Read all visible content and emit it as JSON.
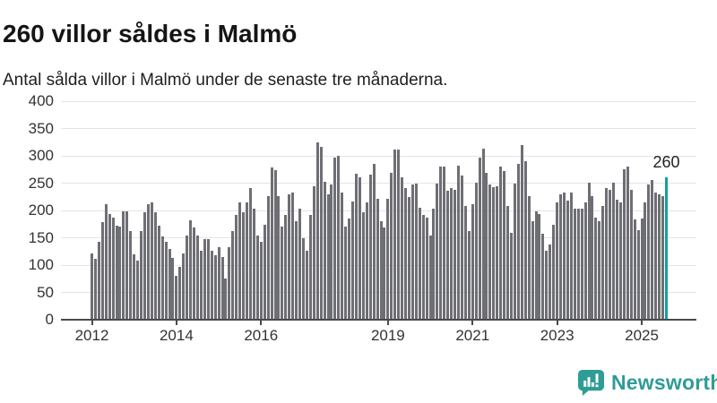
{
  "title": "260 villor såldes i Malmö",
  "subtitle": "Antal sålda villor i Malmö under de senaste tre månaderna.",
  "annotation": {
    "label": "260"
  },
  "brand": {
    "name": "Newsworthy",
    "icon": "newsworthy-speech-bubble-bar-chart-icon",
    "color": "#2f9c96"
  },
  "colors": {
    "bar": "#6e6e75",
    "highlight": "#12a0a2",
    "gridline": "#e4e4e4",
    "axis": "#4a4a4a",
    "title_text": "#151515",
    "tick_text": "#333333"
  },
  "chart_data": {
    "type": "bar",
    "title": "260 villor såldes i Malmö",
    "subtitle": "Antal sålda villor i Malmö under de senaste tre månaderna.",
    "xlabel": "",
    "ylabel": "",
    "frequency": "monthly",
    "x_start": "2012-01",
    "x_end": "2025-08",
    "ylim": [
      0,
      400
    ],
    "y_ticks": [
      0,
      50,
      100,
      150,
      200,
      250,
      300,
      350,
      400
    ],
    "x_ticks": [
      {
        "label": "2012",
        "month_index": 0
      },
      {
        "label": "2014",
        "month_index": 24
      },
      {
        "label": "2016",
        "month_index": 48
      },
      {
        "label": "2019",
        "month_index": 84
      },
      {
        "label": "2021",
        "month_index": 108
      },
      {
        "label": "2023",
        "month_index": 132
      },
      {
        "label": "2025",
        "month_index": 156
      }
    ],
    "grid": "horizontal",
    "legend": "none",
    "highlight_last_bar": true,
    "last_value_label": 260,
    "values": [
      122,
      111,
      142,
      178,
      211,
      193,
      187,
      172,
      170,
      198,
      198,
      162,
      120,
      108,
      163,
      197,
      211,
      215,
      196,
      172,
      152,
      143,
      130,
      113,
      80,
      96,
      121,
      154,
      182,
      169,
      154,
      126,
      148,
      148,
      126,
      118,
      133,
      115,
      75,
      132,
      162,
      192,
      215,
      196,
      214,
      241,
      203,
      154,
      143,
      173,
      227,
      278,
      274,
      227,
      171,
      192,
      229,
      233,
      181,
      203,
      149,
      126,
      192,
      245,
      325,
      317,
      253,
      229,
      248,
      297,
      300,
      233,
      170,
      186,
      217,
      268,
      260,
      197,
      215,
      266,
      286,
      222,
      181,
      169,
      222,
      269,
      311,
      311,
      260,
      241,
      224,
      248,
      249,
      205,
      192,
      187,
      154,
      203,
      249,
      280,
      280,
      236,
      241,
      238,
      282,
      264,
      208,
      162,
      212,
      250,
      297,
      313,
      269,
      248,
      242,
      244,
      280,
      272,
      208,
      159,
      249,
      285,
      319,
      290,
      226,
      181,
      198,
      193,
      157,
      127,
      138,
      173,
      215,
      229,
      233,
      218,
      233,
      203,
      203,
      203,
      215,
      251,
      227,
      187,
      181,
      208,
      241,
      237,
      250,
      220,
      214,
      275,
      280,
      238,
      184,
      164,
      185,
      214,
      248,
      256,
      233,
      229,
      226,
      260
    ]
  }
}
